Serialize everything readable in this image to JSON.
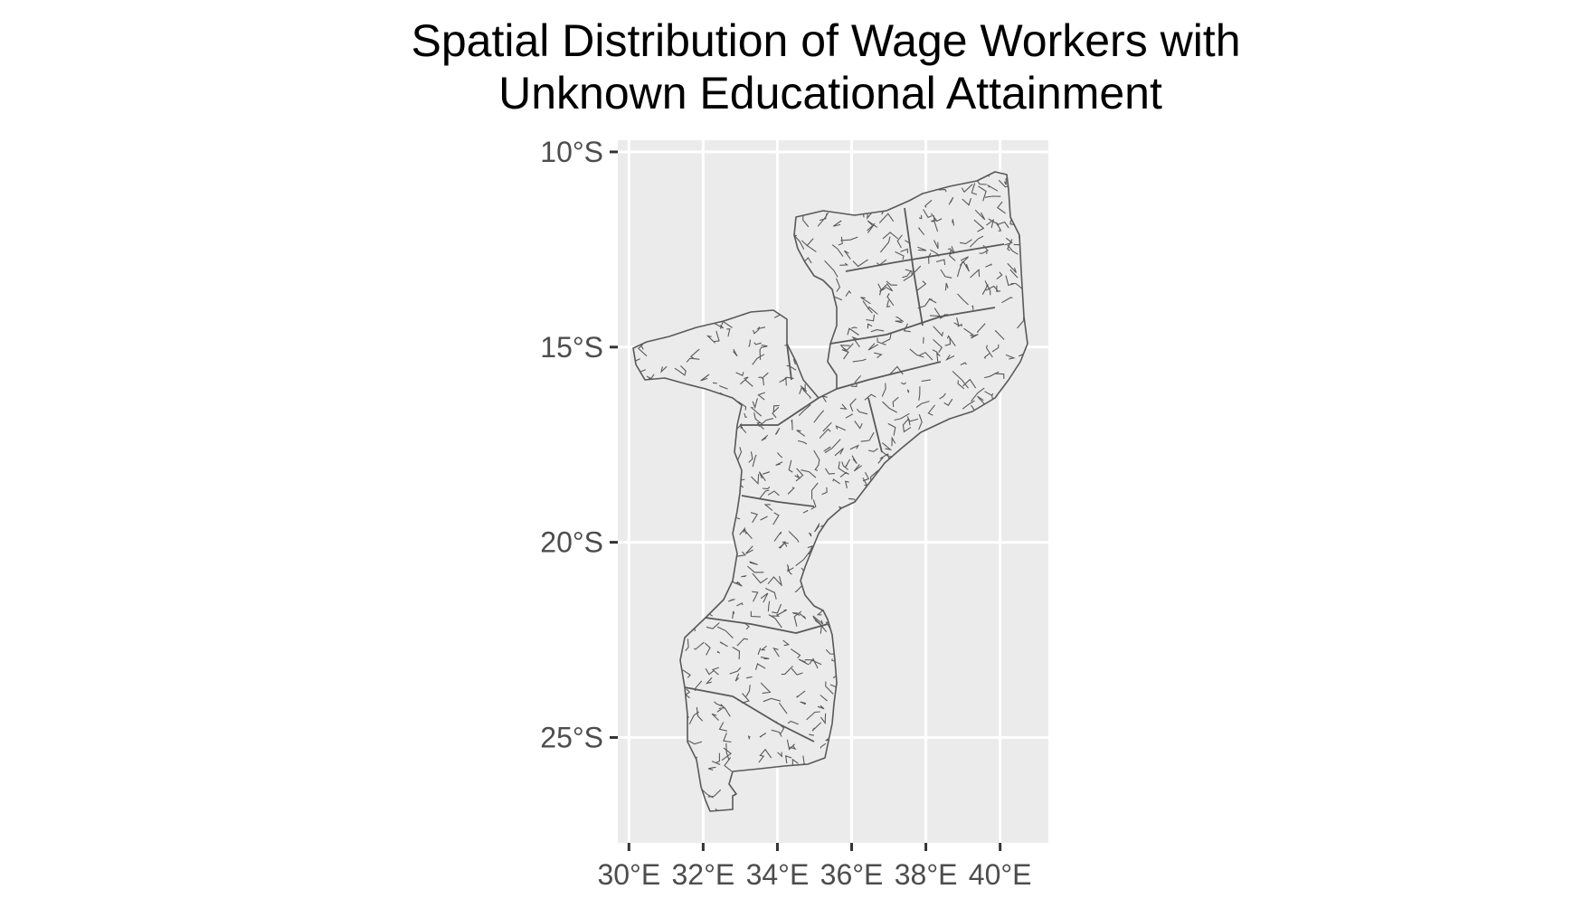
{
  "title": {
    "line1": "Spatial Distribution of Wage Workers with",
    "line2": "Unknown Educational Attainment"
  },
  "colors": {
    "panel_background": "#ebebeb",
    "grid": "#ffffff",
    "boundary": "#595959",
    "tick_label": "#4d4d4d",
    "title": "#000000"
  },
  "map_data": {
    "type": "choropleth-boundaries",
    "country": "Mozambique",
    "units": "administrative localities (boundaries only, no fill legend)",
    "x_axis": {
      "unit": "degrees longitude",
      "range": [
        29.7,
        41.3
      ],
      "ticks": [
        30,
        32,
        34,
        36,
        38,
        40
      ],
      "tick_labels": [
        "30°E",
        "32°E",
        "34°E",
        "36°E",
        "38°E",
        "40°E"
      ]
    },
    "y_axis": {
      "unit": "degrees latitude",
      "range": [
        -27.7,
        -9.7
      ],
      "ticks": [
        -10,
        -15,
        -20,
        -25
      ],
      "tick_labels": [
        "10°S",
        "15°S",
        "20°S",
        "25°S"
      ]
    },
    "grid": true,
    "legend": "none"
  }
}
